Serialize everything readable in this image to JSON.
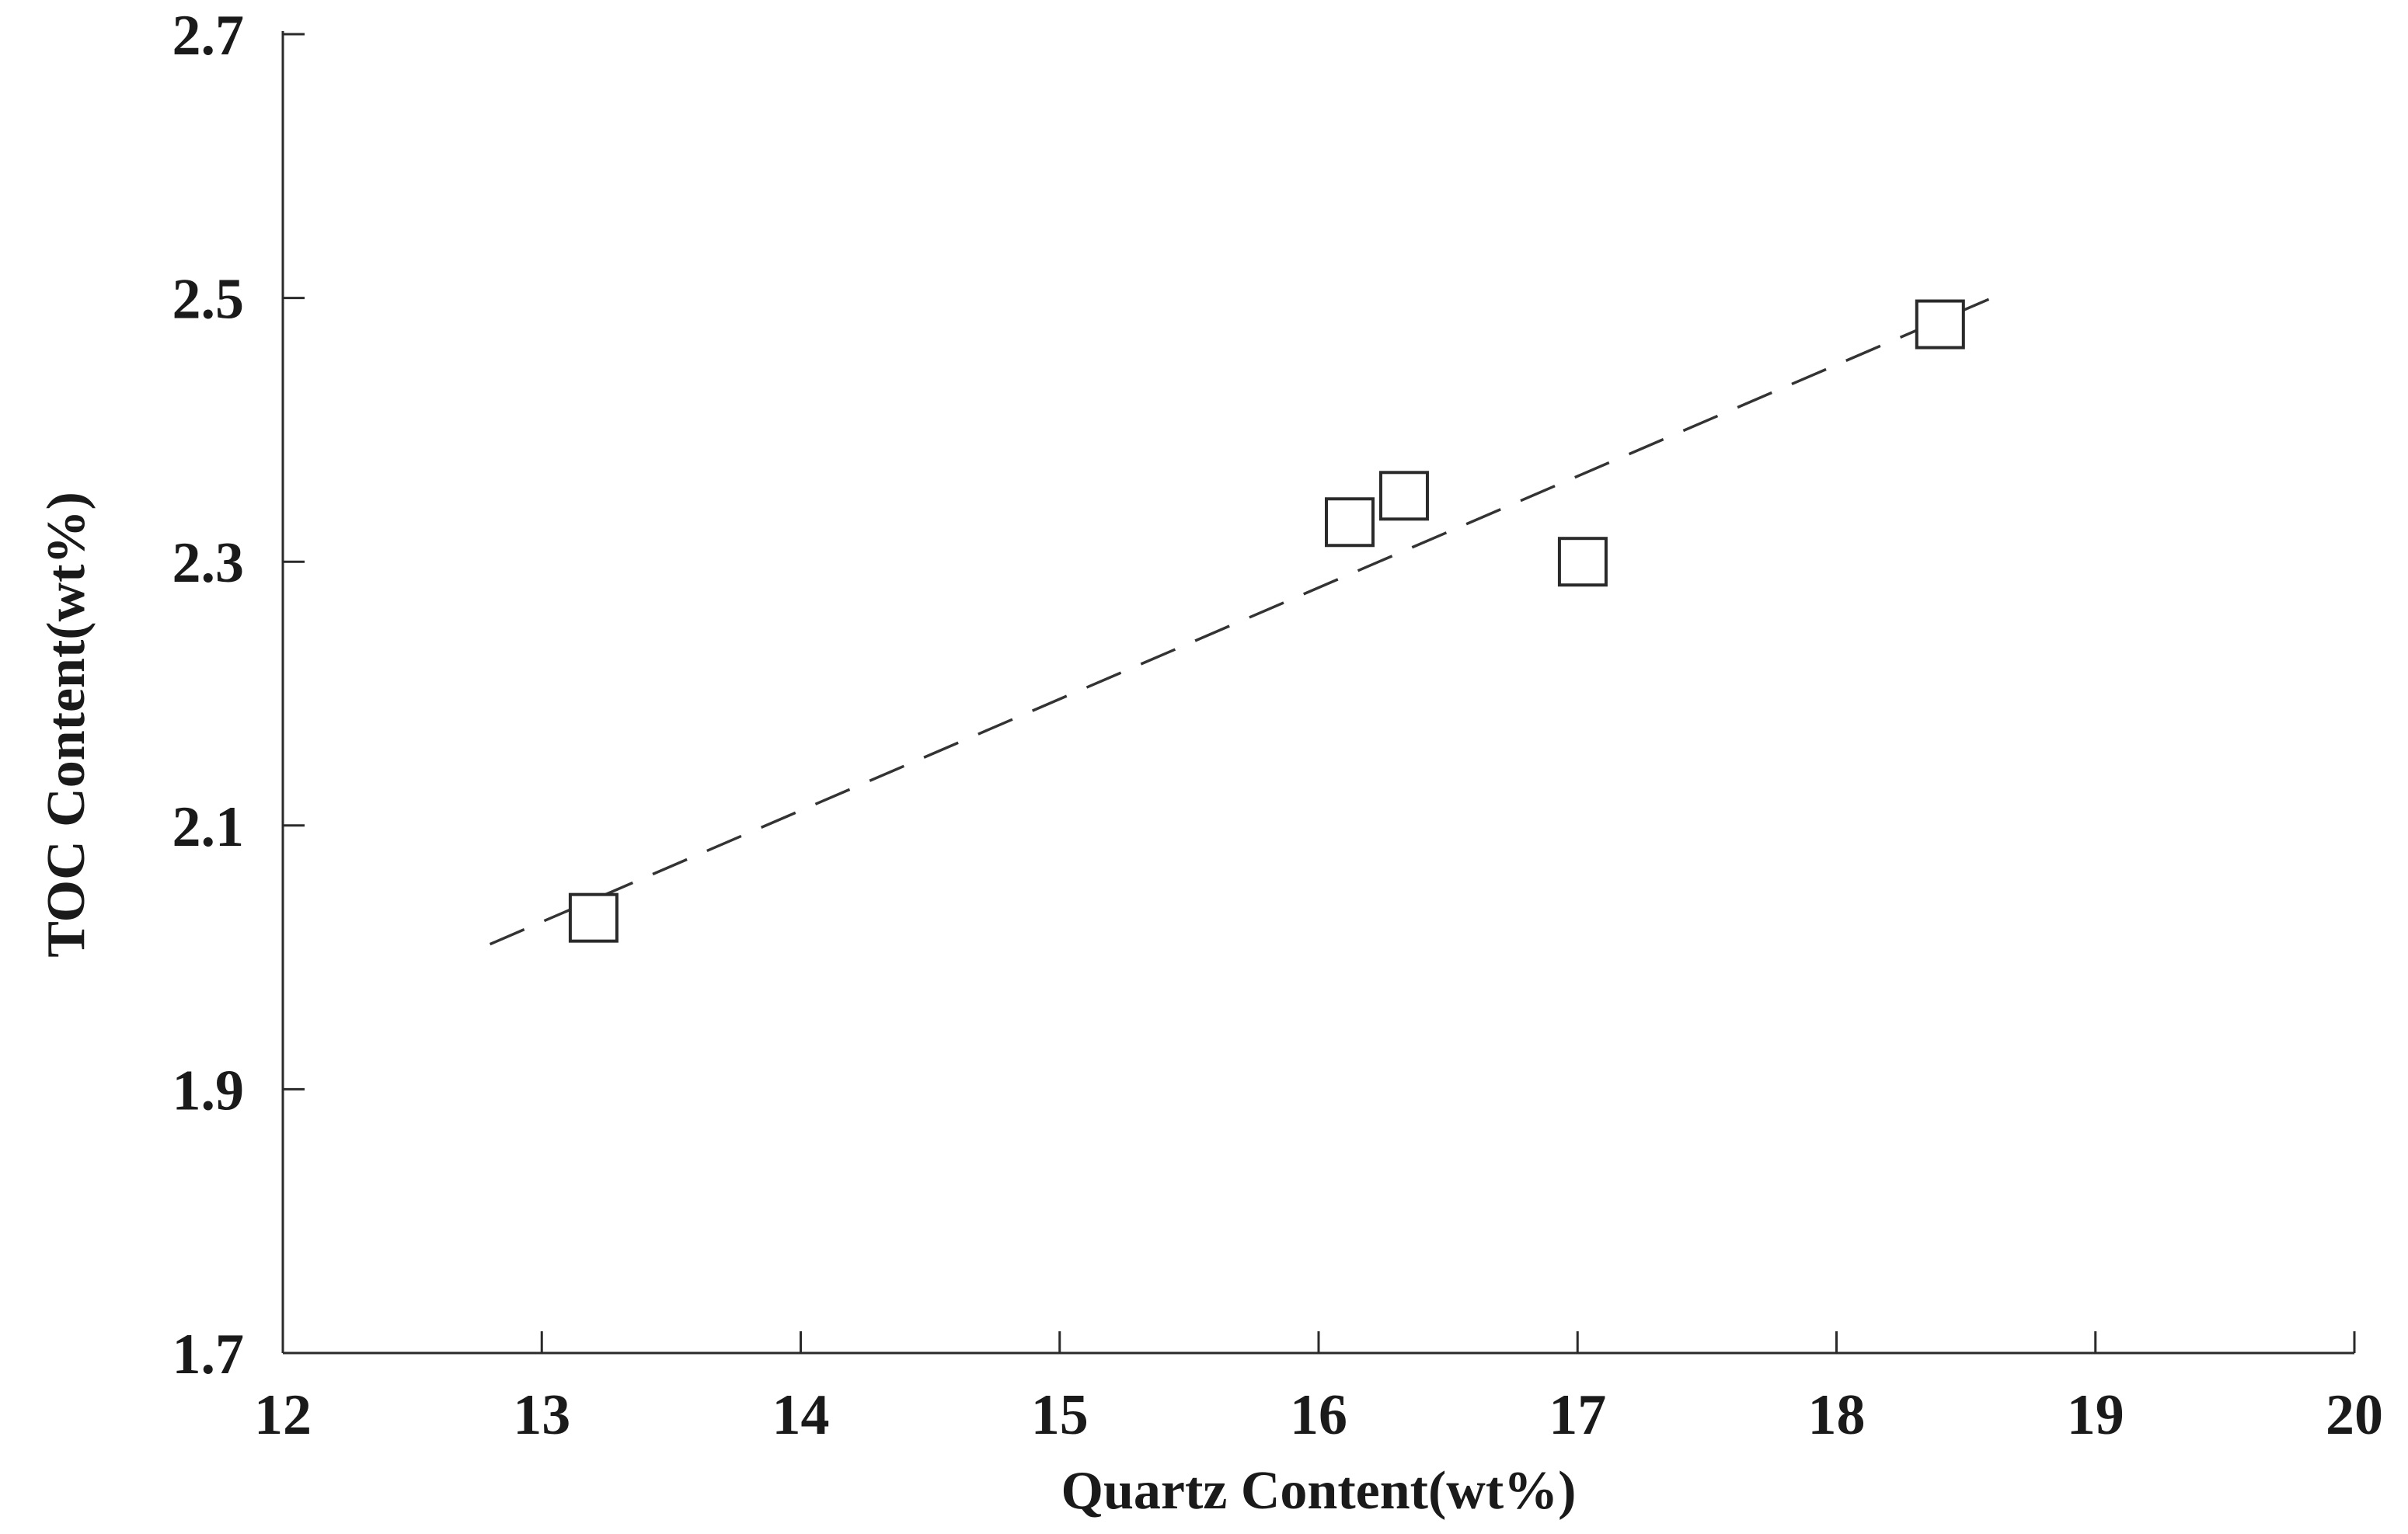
{
  "chart_data": {
    "type": "scatter",
    "title": "",
    "xlabel": "Quartz Content(wt%)",
    "ylabel": "TOC Content(wt%)",
    "xlim": [
      12,
      20
    ],
    "ylim": [
      1.7,
      2.7
    ],
    "xticks": [
      "12",
      "13",
      "14",
      "15",
      "16",
      "17",
      "18",
      "19",
      "20"
    ],
    "yticks": [
      "1.7",
      "1.9",
      "2.1",
      "2.3",
      "2.5",
      "2.7"
    ],
    "grid": false,
    "marker": "open-square",
    "points": [
      {
        "x": 13.2,
        "y": 2.03
      },
      {
        "x": 16.12,
        "y": 2.33
      },
      {
        "x": 16.33,
        "y": 2.35
      },
      {
        "x": 17.02,
        "y": 2.3
      },
      {
        "x": 18.4,
        "y": 2.48
      }
    ],
    "trendline": {
      "style": "dashed",
      "x": [
        12.8,
        18.6
      ],
      "y": [
        2.01,
        2.5
      ]
    }
  }
}
